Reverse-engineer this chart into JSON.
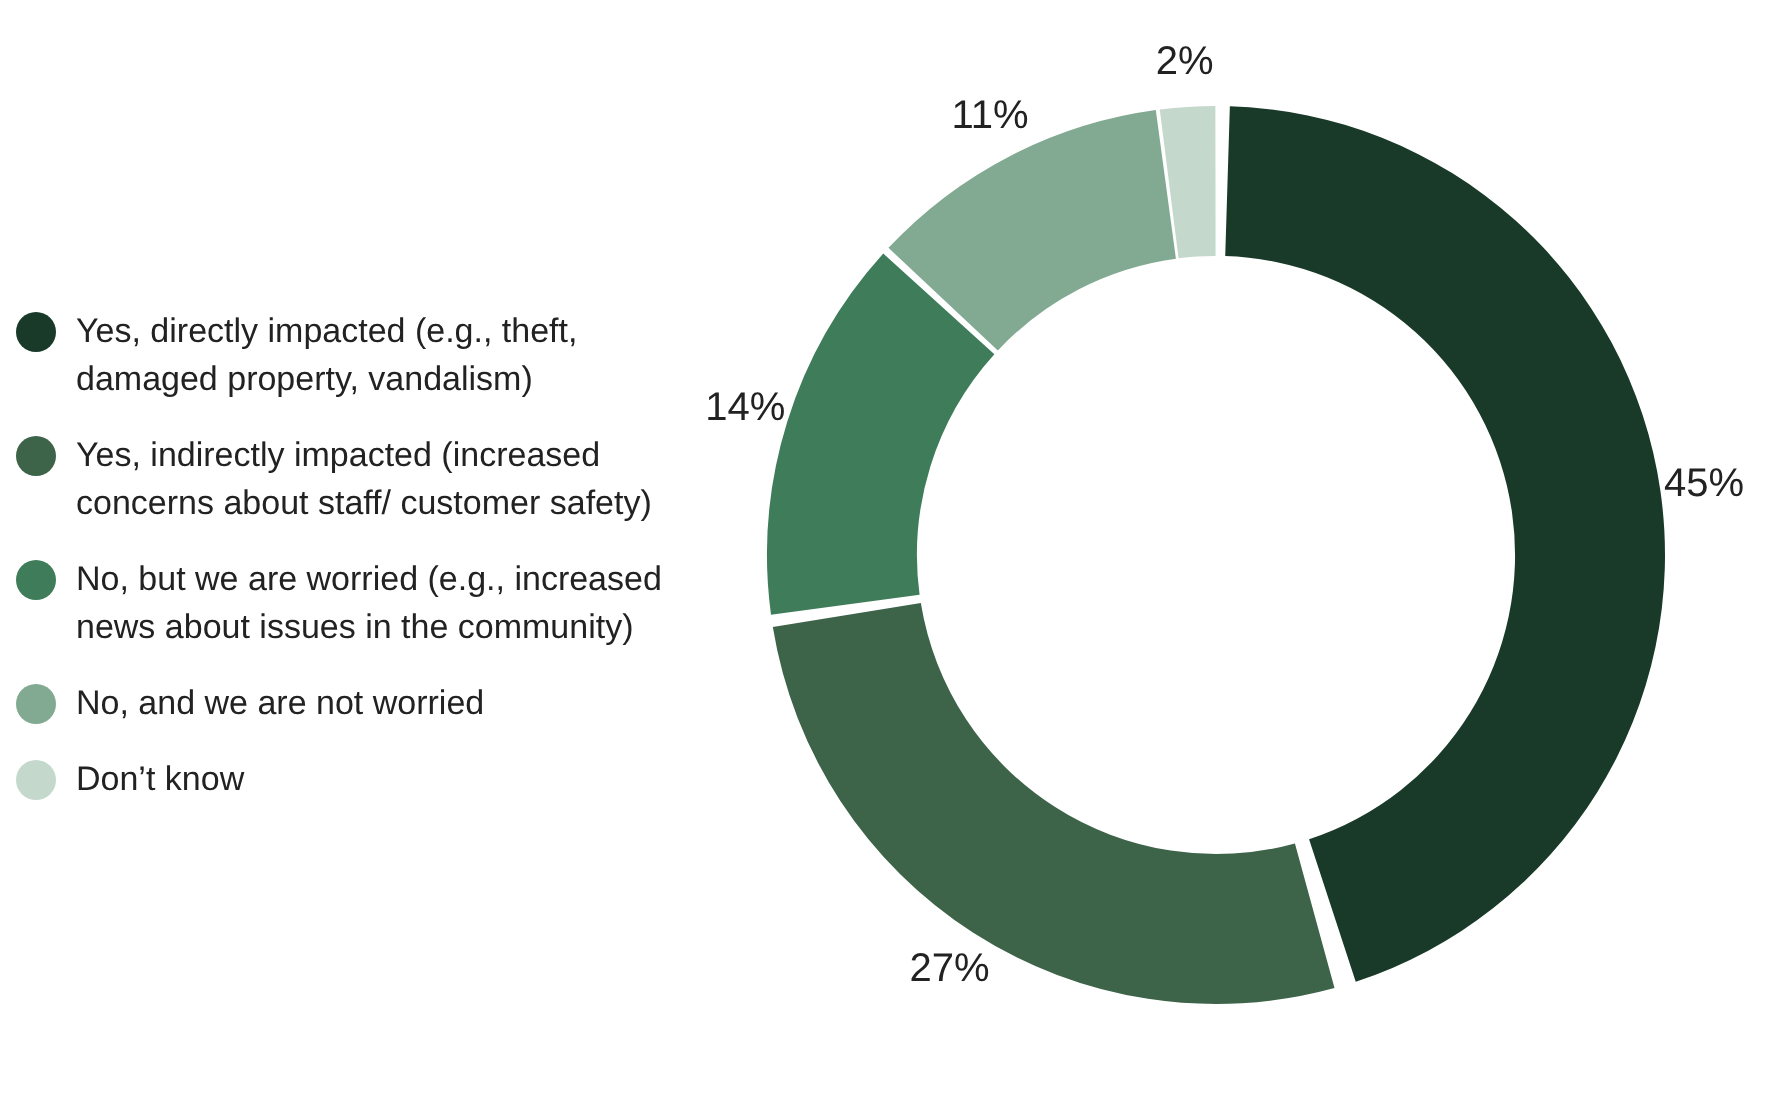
{
  "chart_data": {
    "type": "donut",
    "categories": [
      "Yes, directly impacted (e.g., theft, damaged property, vandalism)",
      "Yes, indirectly impacted (increased concerns about staff/ customer safety)",
      "No, but we are worried (e.g., increased news about issues in the community)",
      "No, and we are not worried",
      "Don’t know"
    ],
    "values": [
      45,
      27,
      14,
      11,
      2
    ],
    "colors": [
      "#1a3a29",
      "#3d6349",
      "#3f7d5a",
      "#82aa92",
      "#c4d9cc"
    ],
    "value_labels": [
      "45%",
      "27%",
      "14%",
      "11%",
      "2%"
    ],
    "legend": "left"
  }
}
